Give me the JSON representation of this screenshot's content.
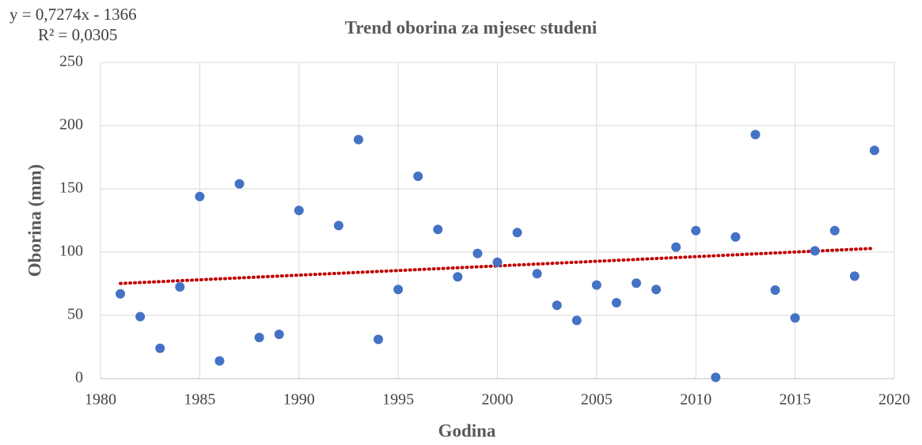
{
  "chart_data": {
    "type": "scatter",
    "title": "Trend oborina za mjesec studeni",
    "annotations": [
      "y = 0,7274x - 1366",
      "R² = 0,0305"
    ],
    "x_label": "Godina",
    "y_label": "Oborina (mm)",
    "series": [
      {
        "name": "Oborina",
        "color": "#4472c4",
        "x": [
          1981,
          1982,
          1983,
          1984,
          1985,
          1986,
          1987,
          1988,
          1989,
          1990,
          1992,
          1993,
          1994,
          1995,
          1996,
          1997,
          1998,
          1999,
          2000,
          2001,
          2002,
          2003,
          2004,
          2005,
          2006,
          2007,
          2008,
          2009,
          2010,
          2011,
          2012,
          2013,
          2014,
          2015,
          2016,
          2017,
          2018,
          2019
        ],
        "values": [
          67,
          49,
          24,
          72.5,
          144,
          14,
          154,
          32.5,
          35,
          133,
          121,
          189,
          31,
          70.5,
          160,
          118,
          80.5,
          99,
          92,
          115.5,
          83,
          58,
          46,
          74,
          60,
          75.5,
          70.5,
          104,
          117,
          1,
          112,
          193,
          70,
          48,
          101,
          117,
          81,
          180.5
        ]
      }
    ],
    "trendline_color": "#c00000",
    "xlim": [
      1980,
      2020
    ],
    "xticks": [
      1980,
      1985,
      1990,
      1995,
      2000,
      2005,
      2010,
      2015,
      2020
    ],
    "ylim": [
      0,
      250
    ],
    "yticks": [
      0,
      50,
      100,
      150,
      200,
      250
    ],
    "grid": true
  }
}
